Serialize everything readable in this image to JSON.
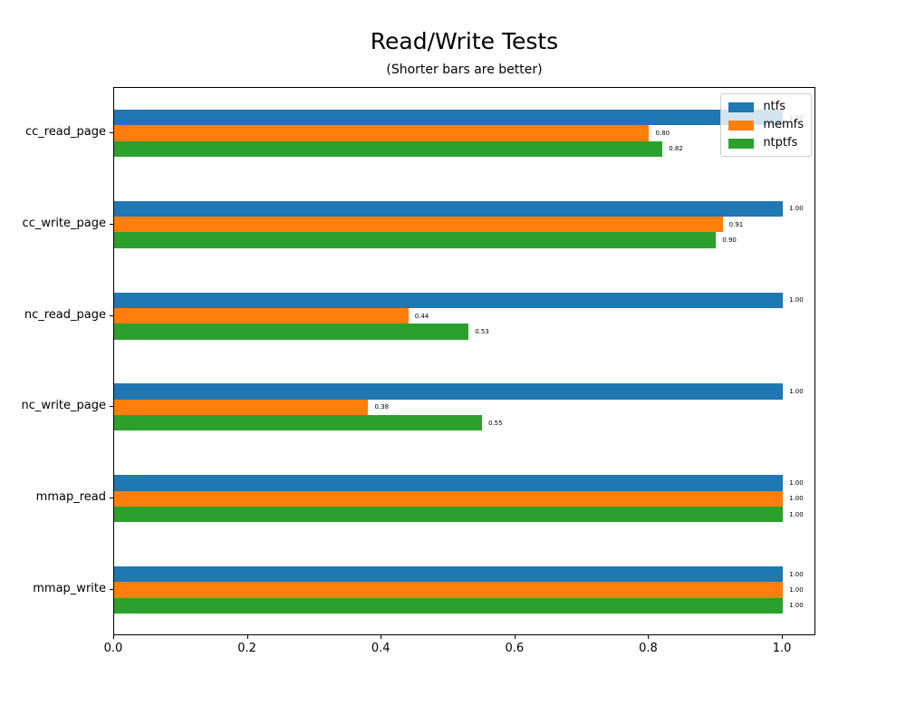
{
  "chart_data": {
    "type": "bar",
    "orientation": "horizontal",
    "title": "Read/Write Tests",
    "subtitle": "(Shorter bars are better)",
    "categories": [
      "cc_read_page",
      "cc_write_page",
      "nc_read_page",
      "nc_write_page",
      "mmap_read",
      "mmap_write"
    ],
    "series": [
      {
        "name": "ntfs",
        "color": "#1f77b4",
        "values": [
          1.0,
          1.0,
          1.0,
          1.0,
          1.0,
          1.0
        ]
      },
      {
        "name": "memfs",
        "color": "#ff7f0e",
        "values": [
          0.8,
          0.91,
          0.44,
          0.38,
          1.0,
          1.0
        ]
      },
      {
        "name": "ntptfs",
        "color": "#2ca02c",
        "values": [
          0.82,
          0.9,
          0.53,
          0.55,
          1.0,
          1.0
        ]
      }
    ],
    "value_label_format": ".2f",
    "xlim": [
      0.0,
      1.05
    ],
    "xtick_values": [
      0.0,
      0.2,
      0.4,
      0.6,
      0.8,
      1.0
    ],
    "xtick_labels": [
      "0.0",
      "0.2",
      "0.4",
      "0.6",
      "0.8",
      "1.0"
    ],
    "legend": {
      "position": "upper right"
    },
    "grid": false,
    "axis_color": "#000000",
    "background_color": "#ffffff"
  }
}
